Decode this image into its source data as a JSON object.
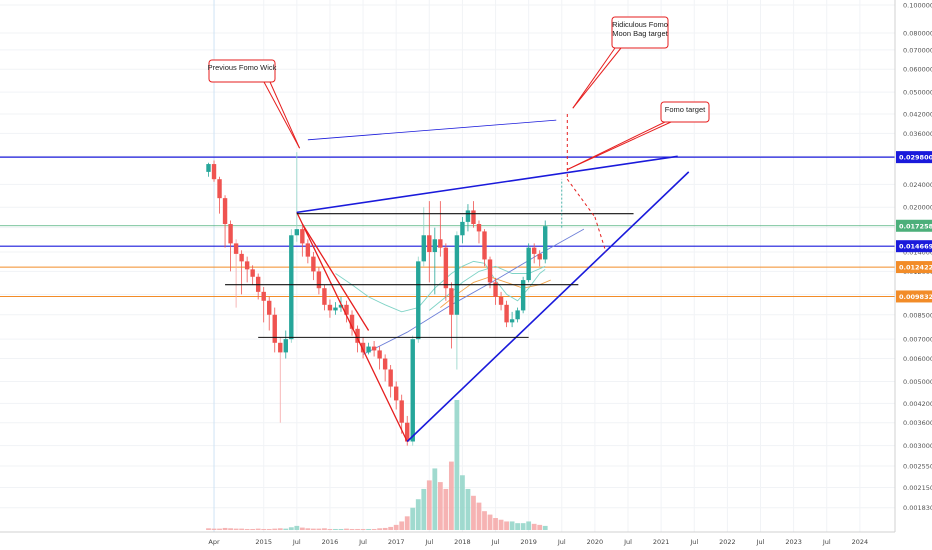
{
  "chart_data": {
    "type": "candlestick",
    "title": "",
    "y_scale": "log",
    "ylim": [
      0.0017,
      0.1
    ],
    "price_axis_labels": [
      "0.10000000",
      "0.08000000",
      "0.07000000",
      "0.06000000",
      "0.05000000",
      "0.04200000",
      "0.03600000",
      "0.03000000",
      "0.02400000",
      "0.02000000",
      "0.01700000",
      "0.01400000",
      "0.01200000",
      "0.01000000",
      "0.00850000",
      "0.00700000",
      "0.00600000",
      "0.00500000",
      "0.00420000",
      "0.00360000",
      "0.00300000",
      "0.00255000",
      "0.00215000",
      "0.00183000"
    ],
    "x_axis_labels": [
      "Apr",
      "2015",
      "Jul",
      "2016",
      "Jul",
      "2017",
      "Jul",
      "2018",
      "Jul",
      "2019",
      "Jul",
      "2020",
      "Jul",
      "2021",
      "Jul",
      "2022",
      "Jul",
      "2023",
      "Jul",
      "2024"
    ],
    "price_badges": [
      {
        "value": "0.02980088",
        "color": "#1a1adb"
      },
      {
        "value": "0.01725877",
        "color": "#4caf7a"
      },
      {
        "value": "0.01466900",
        "color": "#1a1adb"
      },
      {
        "value": "0.01242297",
        "color": "#f28c28"
      },
      {
        "value": "0.00983256",
        "color": "#f28c28"
      }
    ],
    "annotations": [
      {
        "id": "prev-fomo",
        "text": [
          "Previous Fomo Wick"
        ]
      },
      {
        "id": "ridiculous",
        "text": [
          "Ridiculous Fomo",
          "Moon Bag target"
        ]
      },
      {
        "id": "fomo-target",
        "text": [
          "Fomo target"
        ]
      }
    ],
    "candles": [
      {
        "o": 0.0265,
        "c": 0.0282,
        "h": 0.0285,
        "l": 0.0255
      },
      {
        "o": 0.0282,
        "c": 0.025,
        "h": 0.029,
        "l": 0.0245
      },
      {
        "o": 0.025,
        "c": 0.0215,
        "h": 0.0255,
        "l": 0.019
      },
      {
        "o": 0.0215,
        "c": 0.0175,
        "h": 0.022,
        "l": 0.0145
      },
      {
        "o": 0.0175,
        "c": 0.015,
        "h": 0.018,
        "l": 0.012
      },
      {
        "o": 0.015,
        "c": 0.0138,
        "h": 0.0155,
        "l": 0.009
      },
      {
        "o": 0.0138,
        "c": 0.013,
        "h": 0.0142,
        "l": 0.01
      },
      {
        "o": 0.013,
        "c": 0.0122,
        "h": 0.0135,
        "l": 0.011
      },
      {
        "o": 0.0122,
        "c": 0.0115,
        "h": 0.0126,
        "l": 0.0108
      },
      {
        "o": 0.0115,
        "c": 0.0102,
        "h": 0.0118,
        "l": 0.0096
      },
      {
        "o": 0.0102,
        "c": 0.0095,
        "h": 0.0106,
        "l": 0.008
      },
      {
        "o": 0.0095,
        "c": 0.0085,
        "h": 0.0098,
        "l": 0.0075
      },
      {
        "o": 0.0085,
        "c": 0.0068,
        "h": 0.009,
        "l": 0.0063
      },
      {
        "o": 0.0068,
        "c": 0.0063,
        "h": 0.0071,
        "l": 0.0036
      },
      {
        "o": 0.0063,
        "c": 0.007,
        "h": 0.0075,
        "l": 0.006
      },
      {
        "o": 0.007,
        "c": 0.016,
        "h": 0.0168,
        "l": 0.0068
      },
      {
        "o": 0.016,
        "c": 0.0168,
        "h": 0.031,
        "l": 0.0152
      },
      {
        "o": 0.0168,
        "c": 0.015,
        "h": 0.0172,
        "l": 0.0135
      },
      {
        "o": 0.015,
        "c": 0.0135,
        "h": 0.0155,
        "l": 0.0128
      },
      {
        "o": 0.0135,
        "c": 0.012,
        "h": 0.014,
        "l": 0.0112
      },
      {
        "o": 0.012,
        "c": 0.0105,
        "h": 0.0124,
        "l": 0.01
      },
      {
        "o": 0.0105,
        "c": 0.0092,
        "h": 0.0108,
        "l": 0.0088
      },
      {
        "o": 0.0092,
        "c": 0.0088,
        "h": 0.0096,
        "l": 0.0083
      },
      {
        "o": 0.0088,
        "c": 0.009,
        "h": 0.0094,
        "l": 0.0085
      },
      {
        "o": 0.009,
        "c": 0.0092,
        "h": 0.0098,
        "l": 0.0087
      },
      {
        "o": 0.0092,
        "c": 0.0085,
        "h": 0.0095,
        "l": 0.008
      },
      {
        "o": 0.0085,
        "c": 0.0076,
        "h": 0.0088,
        "l": 0.0072
      },
      {
        "o": 0.0076,
        "c": 0.0068,
        "h": 0.0078,
        "l": 0.0063
      },
      {
        "o": 0.0068,
        "c": 0.0063,
        "h": 0.0071,
        "l": 0.006
      },
      {
        "o": 0.0063,
        "c": 0.0066,
        "h": 0.0068,
        "l": 0.0062
      },
      {
        "o": 0.0066,
        "c": 0.0064,
        "h": 0.0069,
        "l": 0.0061
      },
      {
        "o": 0.0064,
        "c": 0.006,
        "h": 0.0066,
        "l": 0.0055
      },
      {
        "o": 0.006,
        "c": 0.0055,
        "h": 0.0062,
        "l": 0.005
      },
      {
        "o": 0.0055,
        "c": 0.0048,
        "h": 0.0057,
        "l": 0.0044
      },
      {
        "o": 0.0048,
        "c": 0.0043,
        "h": 0.005,
        "l": 0.004
      },
      {
        "o": 0.0043,
        "c": 0.0036,
        "h": 0.0045,
        "l": 0.0033
      },
      {
        "o": 0.0036,
        "c": 0.0031,
        "h": 0.0038,
        "l": 0.003
      },
      {
        "o": 0.0031,
        "c": 0.007,
        "h": 0.0072,
        "l": 0.003
      },
      {
        "o": 0.007,
        "c": 0.013,
        "h": 0.0135,
        "l": 0.0068
      },
      {
        "o": 0.013,
        "c": 0.016,
        "h": 0.02,
        "l": 0.0125
      },
      {
        "o": 0.016,
        "c": 0.014,
        "h": 0.021,
        "l": 0.011
      },
      {
        "o": 0.014,
        "c": 0.0155,
        "h": 0.017,
        "l": 0.01
      },
      {
        "o": 0.0155,
        "c": 0.0145,
        "h": 0.021,
        "l": 0.0135
      },
      {
        "o": 0.0145,
        "c": 0.0105,
        "h": 0.015,
        "l": 0.0095
      },
      {
        "o": 0.0105,
        "c": 0.0085,
        "h": 0.011,
        "l": 0.0065
      },
      {
        "o": 0.0085,
        "c": 0.016,
        "h": 0.0165,
        "l": 0.0055
      },
      {
        "o": 0.016,
        "c": 0.0178,
        "h": 0.0185,
        "l": 0.015
      },
      {
        "o": 0.0178,
        "c": 0.0195,
        "h": 0.0205,
        "l": 0.0165
      },
      {
        "o": 0.0195,
        "c": 0.0175,
        "h": 0.021,
        "l": 0.017
      },
      {
        "o": 0.0175,
        "c": 0.0165,
        "h": 0.018,
        "l": 0.015
      },
      {
        "o": 0.0165,
        "c": 0.0132,
        "h": 0.0168,
        "l": 0.0125
      },
      {
        "o": 0.0132,
        "c": 0.011,
        "h": 0.0135,
        "l": 0.0105
      },
      {
        "o": 0.011,
        "c": 0.0098,
        "h": 0.0114,
        "l": 0.0092
      },
      {
        "o": 0.0098,
        "c": 0.0092,
        "h": 0.0102,
        "l": 0.0088
      },
      {
        "o": 0.0092,
        "c": 0.008,
        "h": 0.0095,
        "l": 0.0077
      },
      {
        "o": 0.008,
        "c": 0.0082,
        "h": 0.0087,
        "l": 0.0077
      },
      {
        "o": 0.0082,
        "c": 0.0088,
        "h": 0.009,
        "l": 0.008
      },
      {
        "o": 0.0088,
        "c": 0.0112,
        "h": 0.0115,
        "l": 0.0086
      },
      {
        "o": 0.0112,
        "c": 0.0145,
        "h": 0.015,
        "l": 0.011
      },
      {
        "o": 0.0145,
        "c": 0.0138,
        "h": 0.015,
        "l": 0.0128
      },
      {
        "o": 0.0138,
        "c": 0.0132,
        "h": 0.0142,
        "l": 0.0125
      },
      {
        "o": 0.0132,
        "c": 0.0172,
        "h": 0.018,
        "l": 0.0128
      }
    ],
    "volumes": [
      0.5,
      0.4,
      0.4,
      0.6,
      0.5,
      0.4,
      0.4,
      0.3,
      0.3,
      0.4,
      0.3,
      0.3,
      0.4,
      0.5,
      0.4,
      0.8,
      1.2,
      0.7,
      0.5,
      0.4,
      0.4,
      0.5,
      0.3,
      0.3,
      0.3,
      0.4,
      0.3,
      0.3,
      0.3,
      0.3,
      0.3,
      0.5,
      0.6,
      0.9,
      1.5,
      2.5,
      4.0,
      6.5,
      9.0,
      12.0,
      14.5,
      18.0,
      14.0,
      12.0,
      20.0,
      38.0,
      16.0,
      12.0,
      10.0,
      8.0,
      5.5,
      4.5,
      3.5,
      3.0,
      2.5,
      2.5,
      2.0,
      2.0,
      2.5,
      1.8,
      1.5,
      1.2
    ],
    "volume_colors": [
      "#f4a6a6",
      "#f4a6a6",
      "#f4a6a6",
      "#f4a6a6",
      "#f4a6a6",
      "#f4a6a6",
      "#f4a6a6",
      "#f4a6a6",
      "#f4a6a6",
      "#f4a6a6",
      "#f4a6a6",
      "#f4a6a6",
      "#f4a6a6",
      "#f4a6a6",
      "#8fd3c7",
      "#8fd3c7",
      "#8fd3c7",
      "#f4a6a6",
      "#f4a6a6",
      "#f4a6a6",
      "#f4a6a6",
      "#f4a6a6",
      "#f4a6a6",
      "#8fd3c7",
      "#8fd3c7",
      "#f4a6a6",
      "#f4a6a6",
      "#f4a6a6",
      "#f4a6a6",
      "#8fd3c7",
      "#f4a6a6",
      "#f4a6a6",
      "#f4a6a6",
      "#f4a6a6",
      "#f4a6a6",
      "#f4a6a6",
      "#f4a6a6",
      "#8fd3c7",
      "#8fd3c7",
      "#8fd3c7",
      "#f4a6a6",
      "#8fd3c7",
      "#f4a6a6",
      "#f4a6a6",
      "#f4a6a6",
      "#8fd3c7",
      "#8fd3c7",
      "#8fd3c7",
      "#f4a6a6",
      "#f4a6a6",
      "#f4a6a6",
      "#f4a6a6",
      "#f4a6a6",
      "#f4a6a6",
      "#f4a6a6",
      "#8fd3c7",
      "#8fd3c7",
      "#8fd3c7",
      "#8fd3c7",
      "#f4a6a6",
      "#f4a6a6",
      "#8fd3c7"
    ],
    "colors": {
      "up": "#26a69a",
      "down": "#ef5350",
      "channel": "#1a1adb",
      "triangle": "#e61e1e",
      "support": "#111111",
      "orange": "#f28c28",
      "green_line": "#4caf7a",
      "ma_teal": "#7fd3c6",
      "ma_orange": "#f2a54a",
      "ma_blue": "#6d7fd8",
      "target_path": "#e61e1e"
    },
    "grid": true,
    "legend": "none"
  }
}
